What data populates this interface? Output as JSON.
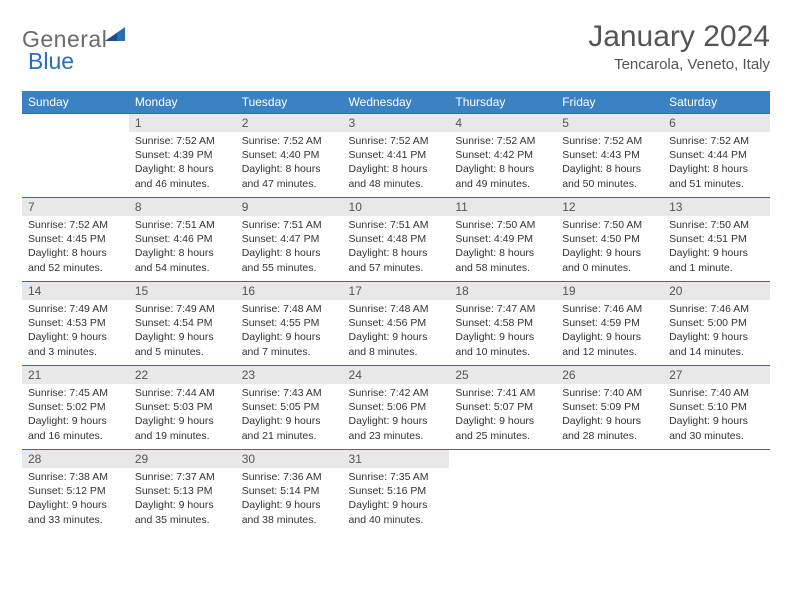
{
  "logo": {
    "text_gray": "General",
    "text_blue": "Blue"
  },
  "title": "January 2024",
  "location": "Tencarola, Veneto, Italy",
  "headers": [
    "Sunday",
    "Monday",
    "Tuesday",
    "Wednesday",
    "Thursday",
    "Friday",
    "Saturday"
  ],
  "colors": {
    "header_bg": "#3b82c4",
    "header_text": "#ffffff",
    "row_divider": "#2a6ebb",
    "daynum_bg": "#e8e8e8",
    "text": "#333333",
    "title_color": "#555555"
  },
  "weeks": [
    [
      {
        "n": "",
        "lines": []
      },
      {
        "n": "1",
        "lines": [
          "Sunrise: 7:52 AM",
          "Sunset: 4:39 PM",
          "Daylight: 8 hours",
          "and 46 minutes."
        ]
      },
      {
        "n": "2",
        "lines": [
          "Sunrise: 7:52 AM",
          "Sunset: 4:40 PM",
          "Daylight: 8 hours",
          "and 47 minutes."
        ]
      },
      {
        "n": "3",
        "lines": [
          "Sunrise: 7:52 AM",
          "Sunset: 4:41 PM",
          "Daylight: 8 hours",
          "and 48 minutes."
        ]
      },
      {
        "n": "4",
        "lines": [
          "Sunrise: 7:52 AM",
          "Sunset: 4:42 PM",
          "Daylight: 8 hours",
          "and 49 minutes."
        ]
      },
      {
        "n": "5",
        "lines": [
          "Sunrise: 7:52 AM",
          "Sunset: 4:43 PM",
          "Daylight: 8 hours",
          "and 50 minutes."
        ]
      },
      {
        "n": "6",
        "lines": [
          "Sunrise: 7:52 AM",
          "Sunset: 4:44 PM",
          "Daylight: 8 hours",
          "and 51 minutes."
        ]
      }
    ],
    [
      {
        "n": "7",
        "lines": [
          "Sunrise: 7:52 AM",
          "Sunset: 4:45 PM",
          "Daylight: 8 hours",
          "and 52 minutes."
        ]
      },
      {
        "n": "8",
        "lines": [
          "Sunrise: 7:51 AM",
          "Sunset: 4:46 PM",
          "Daylight: 8 hours",
          "and 54 minutes."
        ]
      },
      {
        "n": "9",
        "lines": [
          "Sunrise: 7:51 AM",
          "Sunset: 4:47 PM",
          "Daylight: 8 hours",
          "and 55 minutes."
        ]
      },
      {
        "n": "10",
        "lines": [
          "Sunrise: 7:51 AM",
          "Sunset: 4:48 PM",
          "Daylight: 8 hours",
          "and 57 minutes."
        ]
      },
      {
        "n": "11",
        "lines": [
          "Sunrise: 7:50 AM",
          "Sunset: 4:49 PM",
          "Daylight: 8 hours",
          "and 58 minutes."
        ]
      },
      {
        "n": "12",
        "lines": [
          "Sunrise: 7:50 AM",
          "Sunset: 4:50 PM",
          "Daylight: 9 hours",
          "and 0 minutes."
        ]
      },
      {
        "n": "13",
        "lines": [
          "Sunrise: 7:50 AM",
          "Sunset: 4:51 PM",
          "Daylight: 9 hours",
          "and 1 minute."
        ]
      }
    ],
    [
      {
        "n": "14",
        "lines": [
          "Sunrise: 7:49 AM",
          "Sunset: 4:53 PM",
          "Daylight: 9 hours",
          "and 3 minutes."
        ]
      },
      {
        "n": "15",
        "lines": [
          "Sunrise: 7:49 AM",
          "Sunset: 4:54 PM",
          "Daylight: 9 hours",
          "and 5 minutes."
        ]
      },
      {
        "n": "16",
        "lines": [
          "Sunrise: 7:48 AM",
          "Sunset: 4:55 PM",
          "Daylight: 9 hours",
          "and 7 minutes."
        ]
      },
      {
        "n": "17",
        "lines": [
          "Sunrise: 7:48 AM",
          "Sunset: 4:56 PM",
          "Daylight: 9 hours",
          "and 8 minutes."
        ]
      },
      {
        "n": "18",
        "lines": [
          "Sunrise: 7:47 AM",
          "Sunset: 4:58 PM",
          "Daylight: 9 hours",
          "and 10 minutes."
        ]
      },
      {
        "n": "19",
        "lines": [
          "Sunrise: 7:46 AM",
          "Sunset: 4:59 PM",
          "Daylight: 9 hours",
          "and 12 minutes."
        ]
      },
      {
        "n": "20",
        "lines": [
          "Sunrise: 7:46 AM",
          "Sunset: 5:00 PM",
          "Daylight: 9 hours",
          "and 14 minutes."
        ]
      }
    ],
    [
      {
        "n": "21",
        "lines": [
          "Sunrise: 7:45 AM",
          "Sunset: 5:02 PM",
          "Daylight: 9 hours",
          "and 16 minutes."
        ]
      },
      {
        "n": "22",
        "lines": [
          "Sunrise: 7:44 AM",
          "Sunset: 5:03 PM",
          "Daylight: 9 hours",
          "and 19 minutes."
        ]
      },
      {
        "n": "23",
        "lines": [
          "Sunrise: 7:43 AM",
          "Sunset: 5:05 PM",
          "Daylight: 9 hours",
          "and 21 minutes."
        ]
      },
      {
        "n": "24",
        "lines": [
          "Sunrise: 7:42 AM",
          "Sunset: 5:06 PM",
          "Daylight: 9 hours",
          "and 23 minutes."
        ]
      },
      {
        "n": "25",
        "lines": [
          "Sunrise: 7:41 AM",
          "Sunset: 5:07 PM",
          "Daylight: 9 hours",
          "and 25 minutes."
        ]
      },
      {
        "n": "26",
        "lines": [
          "Sunrise: 7:40 AM",
          "Sunset: 5:09 PM",
          "Daylight: 9 hours",
          "and 28 minutes."
        ]
      },
      {
        "n": "27",
        "lines": [
          "Sunrise: 7:40 AM",
          "Sunset: 5:10 PM",
          "Daylight: 9 hours",
          "and 30 minutes."
        ]
      }
    ],
    [
      {
        "n": "28",
        "lines": [
          "Sunrise: 7:38 AM",
          "Sunset: 5:12 PM",
          "Daylight: 9 hours",
          "and 33 minutes."
        ]
      },
      {
        "n": "29",
        "lines": [
          "Sunrise: 7:37 AM",
          "Sunset: 5:13 PM",
          "Daylight: 9 hours",
          "and 35 minutes."
        ]
      },
      {
        "n": "30",
        "lines": [
          "Sunrise: 7:36 AM",
          "Sunset: 5:14 PM",
          "Daylight: 9 hours",
          "and 38 minutes."
        ]
      },
      {
        "n": "31",
        "lines": [
          "Sunrise: 7:35 AM",
          "Sunset: 5:16 PM",
          "Daylight: 9 hours",
          "and 40 minutes."
        ]
      },
      {
        "n": "",
        "lines": []
      },
      {
        "n": "",
        "lines": []
      },
      {
        "n": "",
        "lines": []
      }
    ]
  ]
}
